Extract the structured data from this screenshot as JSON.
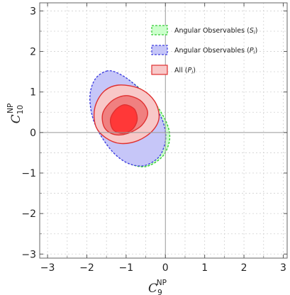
{
  "chart_data": {
    "type": "contour",
    "xlabel": {
      "main": "C",
      "sub": "9",
      "sup": "NP"
    },
    "ylabel": {
      "main": "C",
      "sub": "10",
      "sup": "NP"
    },
    "xlim": [
      -3.2,
      3.1
    ],
    "ylim": [
      -3.1,
      3.2
    ],
    "x_ticks": [
      -3,
      -2,
      -1,
      0,
      1,
      2,
      3
    ],
    "y_ticks": [
      -3,
      -2,
      -1,
      0,
      1,
      2,
      3
    ],
    "x_tick_labels": [
      "−3",
      "−2",
      "−1",
      "0",
      "1",
      "2",
      "3"
    ],
    "y_tick_labels": [
      "−3",
      "−2",
      "−1",
      "0",
      "1",
      "2",
      "3"
    ],
    "grid": true,
    "reference_lines": {
      "x": 0,
      "y": 0
    },
    "legend_position": "top-right",
    "series": [
      {
        "name": "Angular Observables (S_i)",
        "label_main": "Angular Observables (",
        "label_var": "S",
        "label_sub": "i",
        "label_end": ")",
        "fill": "#ccffcc",
        "stroke": "#33cc33",
        "dashed": true,
        "contours": [
          [
            [
              -1.45,
              1.48
            ],
            [
              -1.75,
              1.3
            ],
            [
              -1.88,
              0.9
            ],
            [
              -1.82,
              0.4
            ],
            [
              -1.62,
              -0.05
            ],
            [
              -1.3,
              -0.48
            ],
            [
              -0.92,
              -0.76
            ],
            [
              -0.5,
              -0.84
            ],
            [
              -0.1,
              -0.62
            ],
            [
              0.08,
              -0.3
            ],
            [
              0.1,
              0.02
            ],
            [
              -0.05,
              0.4
            ],
            [
              -0.35,
              0.82
            ],
            [
              -0.8,
              1.2
            ],
            [
              -1.15,
              1.42
            ]
          ]
        ]
      },
      {
        "name": "Angular Observables (P_i)",
        "label_main": "Angular Observables (",
        "label_var": "P",
        "label_sub": "i",
        "label_end": ")",
        "fill": "#c6c6f8",
        "stroke": "#3f3fdf",
        "dashed": true,
        "contours": [
          [
            [
              -1.48,
              1.52
            ],
            [
              -1.78,
              1.33
            ],
            [
              -1.92,
              0.92
            ],
            [
              -1.86,
              0.4
            ],
            [
              -1.66,
              -0.05
            ],
            [
              -1.32,
              -0.5
            ],
            [
              -0.95,
              -0.76
            ],
            [
              -0.55,
              -0.82
            ],
            [
              -0.18,
              -0.62
            ],
            [
              -0.02,
              -0.3
            ],
            [
              0.0,
              0.02
            ],
            [
              -0.12,
              0.4
            ],
            [
              -0.42,
              0.84
            ],
            [
              -0.85,
              1.24
            ],
            [
              -1.2,
              1.46
            ]
          ]
        ]
      },
      {
        "name": "All (P_i)",
        "label_main": "All (",
        "label_var": "P",
        "label_sub": "i",
        "label_end": ")",
        "fill": "#f8c8c8",
        "stroke": "#e03030",
        "dashed": false,
        "contours": [
          [
            [
              -1.2,
              1.17
            ],
            [
              -1.58,
              1.0
            ],
            [
              -1.8,
              0.6
            ],
            [
              -1.77,
              0.15
            ],
            [
              -1.52,
              -0.13
            ],
            [
              -1.15,
              -0.27
            ],
            [
              -0.7,
              -0.2
            ],
            [
              -0.32,
              0.05
            ],
            [
              -0.16,
              0.38
            ],
            [
              -0.28,
              0.78
            ],
            [
              -0.65,
              1.08
            ]
          ],
          [
            [
              -1.17,
              0.88
            ],
            [
              -1.43,
              0.72
            ],
            [
              -1.6,
              0.45
            ],
            [
              -1.55,
              0.12
            ],
            [
              -1.3,
              -0.05
            ],
            [
              -0.95,
              -0.02
            ],
            [
              -0.6,
              0.18
            ],
            [
              -0.45,
              0.48
            ],
            [
              -0.6,
              0.76
            ],
            [
              -0.9,
              0.9
            ]
          ],
          [
            [
              -1.08,
              0.68
            ],
            [
              -1.28,
              0.55
            ],
            [
              -1.4,
              0.32
            ],
            [
              -1.33,
              0.07
            ],
            [
              -1.1,
              -0.02
            ],
            [
              -0.85,
              0.07
            ],
            [
              -0.72,
              0.3
            ],
            [
              -0.77,
              0.55
            ],
            [
              -0.92,
              0.66
            ]
          ]
        ],
        "contour_fills": [
          "#f8c8c8",
          "#f08080",
          "#ff3838"
        ]
      }
    ]
  }
}
